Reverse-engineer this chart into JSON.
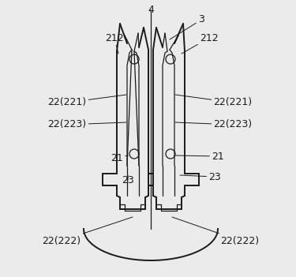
{
  "bg_color": "#ebebeb",
  "line_color": "#1a1a1a",
  "label_color": "#1a1a1a",
  "figsize": [
    3.75,
    3.51
  ],
  "dpi": 100,
  "font_size": 9
}
